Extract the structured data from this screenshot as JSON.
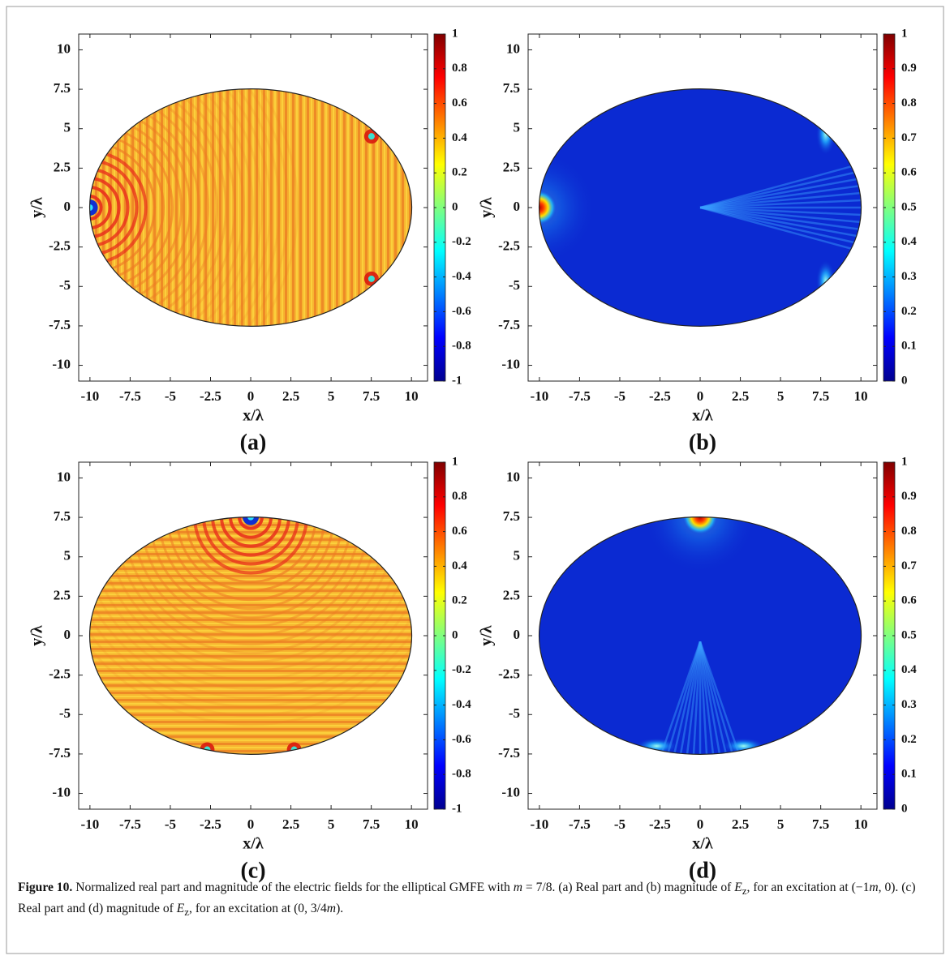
{
  "chart_data": [
    {
      "type": "heatmap",
      "quantity": "real",
      "colormap": "jet",
      "xlabel": "x/λ",
      "ylabel": "y/λ",
      "panel_label": "(a)",
      "xlim": [
        -10.7,
        11
      ],
      "ylim": [
        -11,
        11
      ],
      "xticks": [
        -10,
        -7.5,
        -5,
        -2.5,
        0,
        2.5,
        5,
        7.5,
        10
      ],
      "yticks": [
        10,
        7.5,
        5,
        2.5,
        0,
        -2.5,
        -5,
        -7.5,
        -10
      ],
      "clim": [
        -1,
        1
      ],
      "cticks": [
        1,
        0.8,
        0.6,
        0.4,
        0.2,
        0,
        -0.2,
        -0.4,
        -0.6,
        -0.8,
        -1
      ]
    },
    {
      "type": "heatmap",
      "quantity": "magnitude",
      "colormap": "jet",
      "xlabel": "x/λ",
      "ylabel": "y/λ",
      "panel_label": "(b)",
      "xlim": [
        -10.7,
        11
      ],
      "ylim": [
        -11,
        11
      ],
      "xticks": [
        -10,
        -7.5,
        -5,
        -2.5,
        0,
        2.5,
        5,
        7.5,
        10
      ],
      "yticks": [
        10,
        7.5,
        5,
        2.5,
        0,
        -2.5,
        -5,
        -7.5,
        -10
      ],
      "clim": [
        0,
        1
      ],
      "cticks": [
        1,
        0.9,
        0.8,
        0.7,
        0.6,
        0.5,
        0.4,
        0.3,
        0.2,
        0.1,
        0
      ]
    },
    {
      "type": "heatmap",
      "quantity": "real",
      "colormap": "jet",
      "xlabel": "x/λ",
      "ylabel": "y/λ",
      "panel_label": "(c)",
      "xlim": [
        -10.7,
        11
      ],
      "ylim": [
        -11,
        11
      ],
      "xticks": [
        -10,
        -7.5,
        -5,
        -2.5,
        0,
        2.5,
        5,
        7.5,
        10
      ],
      "yticks": [
        10,
        7.5,
        5,
        2.5,
        0,
        -2.5,
        -5,
        -7.5,
        -10
      ],
      "clim": [
        -1,
        1
      ],
      "cticks": [
        1,
        0.8,
        0.6,
        0.4,
        0.2,
        0,
        -0.2,
        -0.4,
        -0.6,
        -0.8,
        -1
      ]
    },
    {
      "type": "heatmap",
      "quantity": "magnitude",
      "colormap": "jet",
      "xlabel": "x/λ",
      "ylabel": "y/λ",
      "panel_label": "(d)",
      "xlim": [
        -10.7,
        11
      ],
      "ylim": [
        -11,
        11
      ],
      "xticks": [
        -10,
        -7.5,
        -5,
        -2.5,
        0,
        2.5,
        5,
        7.5,
        10
      ],
      "yticks": [
        10,
        7.5,
        5,
        2.5,
        0,
        -2.5,
        -5,
        -7.5,
        -10
      ],
      "clim": [
        0,
        1
      ],
      "cticks": [
        1,
        0.9,
        0.8,
        0.7,
        0.6,
        0.5,
        0.4,
        0.3,
        0.2,
        0.1,
        0
      ]
    }
  ],
  "caption": {
    "label": "Figure 10.",
    "parts": [
      "Normalized real part and magnitude of the electric fields for the elliptical GMFE with ",
      "m",
      " = 7/8. (a) Real part and (b) magnitude of ",
      "E",
      "z",
      ", for an excitation at (−1",
      "m",
      ", 0). (c) Real part and (d) magnitude of ",
      "E",
      "z",
      ", for an excitation at (0, 3/4",
      "m",
      ")."
    ]
  }
}
